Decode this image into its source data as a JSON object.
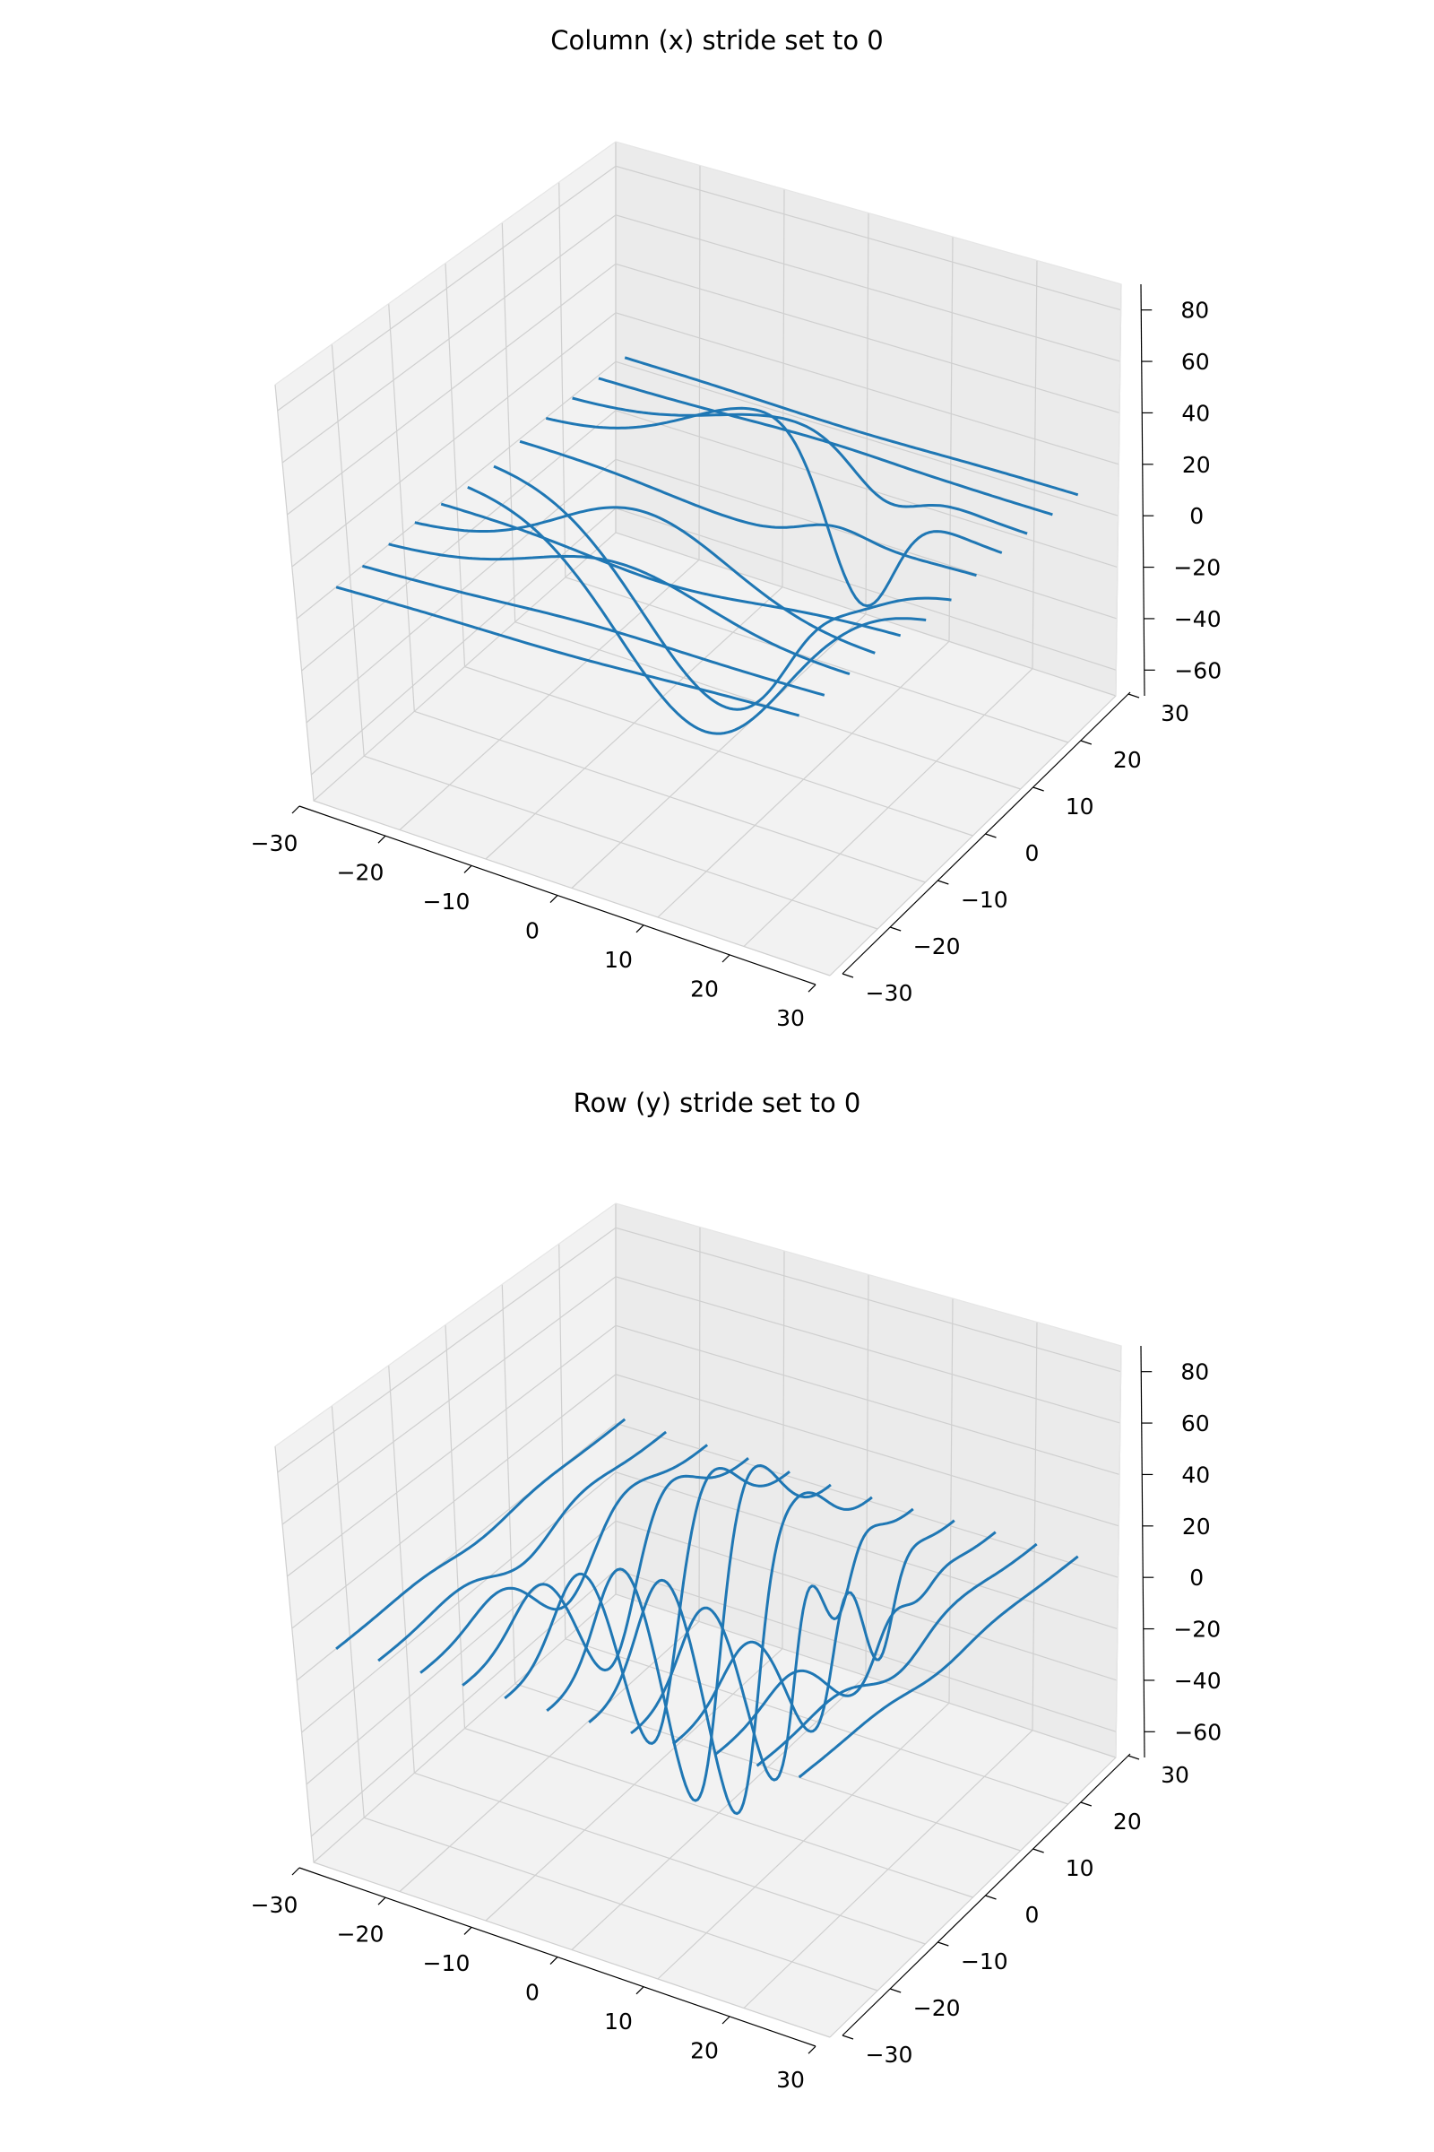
{
  "chart_data": [
    {
      "type": "line",
      "subtype": "3d-wireframe",
      "title": "Column (x) stride set to 0",
      "xlabel": "",
      "ylabel": "",
      "zlabel": "",
      "xlim": [
        -30,
        30
      ],
      "ylim": [
        -30,
        30
      ],
      "zlim": [
        -70,
        90
      ],
      "xticks": [
        "−30",
        "−20",
        "−10",
        "0",
        "10",
        "20",
        "30"
      ],
      "yticks": [
        "−30",
        "−20",
        "−10",
        "0",
        "10",
        "20",
        "30"
      ],
      "zticks": [
        "−60",
        "−40",
        "−20",
        "0",
        "20",
        "40",
        "60",
        "80"
      ],
      "grid": true,
      "line_direction": "x",
      "series_count": 12,
      "line_color": "#1f77b4"
    },
    {
      "type": "line",
      "subtype": "3d-wireframe",
      "title": "Row (y) stride set to 0",
      "xlabel": "",
      "ylabel": "",
      "zlabel": "",
      "xlim": [
        -30,
        30
      ],
      "ylim": [
        -30,
        30
      ],
      "zlim": [
        -70,
        90
      ],
      "xticks": [
        "−30",
        "−20",
        "−10",
        "0",
        "10",
        "20",
        "30"
      ],
      "yticks": [
        "−30",
        "−20",
        "−10",
        "0",
        "10",
        "20",
        "30"
      ],
      "zticks": [
        "−60",
        "−40",
        "−20",
        "0",
        "20",
        "40",
        "60",
        "80"
      ],
      "grid": true,
      "line_direction": "y",
      "series_count": 12,
      "line_color": "#1f77b4"
    }
  ]
}
